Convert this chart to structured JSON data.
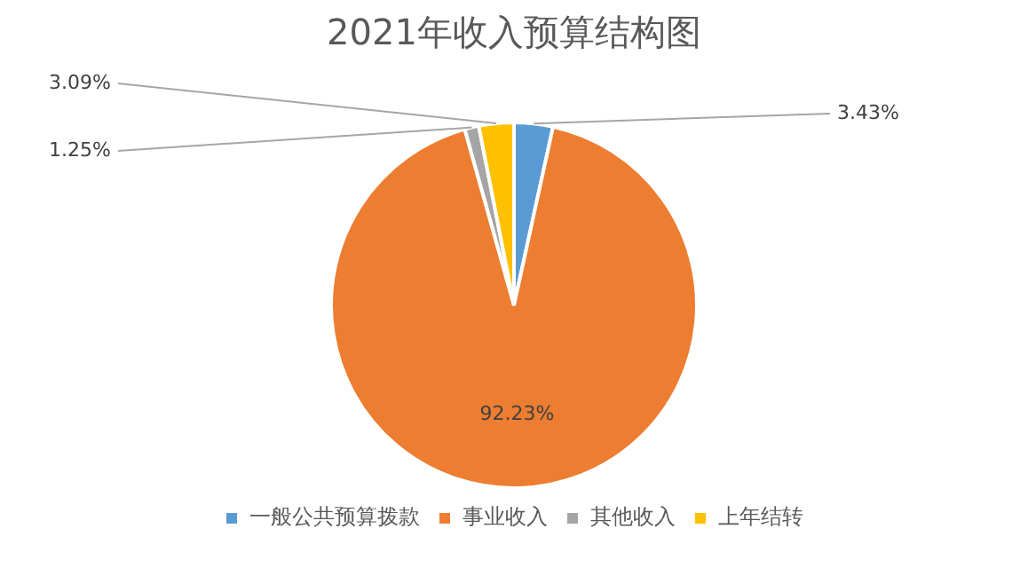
{
  "chart_data": {
    "type": "pie",
    "title": "2021年收入预算结构图",
    "categories": [
      "一般公共预算拨款",
      "事业收入",
      "其他收入",
      "上年结转"
    ],
    "values": [
      3.43,
      92.23,
      1.25,
      3.09
    ],
    "colors": [
      "#5b9bd5",
      "#ed7d31",
      "#a5a5a5",
      "#ffc000"
    ],
    "value_labels": [
      "3.43%",
      "92.23%",
      "1.25%",
      "3.09%"
    ],
    "legend": "bottom"
  }
}
